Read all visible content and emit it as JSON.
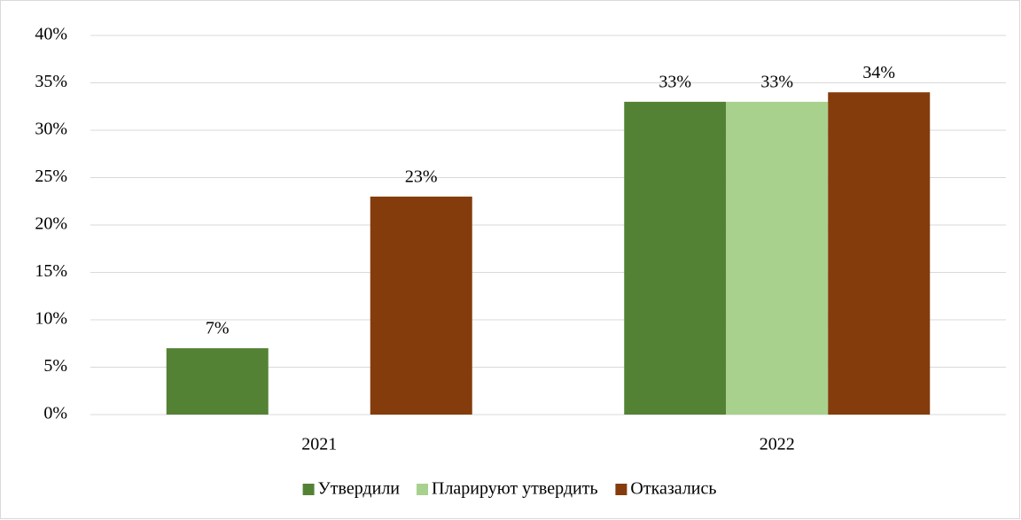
{
  "chart_data": {
    "type": "bar",
    "categories": [
      "2021",
      "2022"
    ],
    "series": [
      {
        "name": "Утвердили",
        "color": "#548235",
        "values": [
          7,
          33
        ],
        "value_labels": [
          "7%",
          "33%"
        ]
      },
      {
        "name": "Пларируют утвердить",
        "color": "#a9d18e",
        "values": [
          null,
          33
        ],
        "value_labels": [
          null,
          "33%"
        ]
      },
      {
        "name": "Отказались",
        "color": "#843c0c",
        "values": [
          23,
          34
        ],
        "value_labels": [
          "23%",
          "34%"
        ]
      }
    ],
    "ylim": [
      0,
      40
    ],
    "yticks": [
      {
        "value": 0,
        "label": "0%"
      },
      {
        "value": 5,
        "label": "5%"
      },
      {
        "value": 10,
        "label": "10%"
      },
      {
        "value": 15,
        "label": "15%"
      },
      {
        "value": 20,
        "label": "20%"
      },
      {
        "value": 25,
        "label": "25%"
      },
      {
        "value": 30,
        "label": "30%"
      },
      {
        "value": 35,
        "label": "35%"
      },
      {
        "value": 40,
        "label": "40%"
      }
    ],
    "grid": true,
    "legend": "bottom"
  }
}
